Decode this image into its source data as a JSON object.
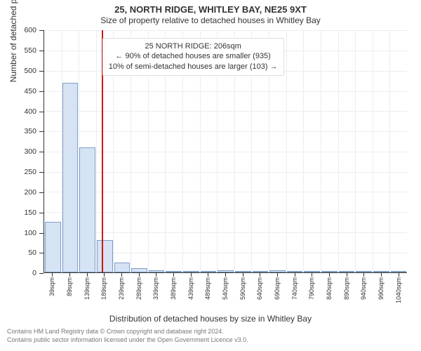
{
  "title_line1": "25, NORTH RIDGE, WHITLEY BAY, NE25 9XT",
  "title_line2": "Size of property relative to detached houses in Whitley Bay",
  "x_axis_label": "Distribution of detached houses by size in Whitley Bay",
  "y_axis_label": "Number of detached properties",
  "credit_line1": "Contains HM Land Registry data © Crown copyright and database right 2024.",
  "credit_line2": "Contains public sector information licensed under the Open Government Licence v3.0.",
  "annotation": {
    "line1": "25 NORTH RIDGE: 206sqm",
    "line2": "← 90% of detached houses are smaller (935)",
    "line3": "10% of semi-detached houses are larger (103) →"
  },
  "chart": {
    "type": "bar",
    "y_max": 600,
    "y_tick_step": 50,
    "reference_x_value": 206,
    "bar_fill": "#d5e3f4",
    "bar_stroke": "#7f9ec9",
    "grid_color": "#e9edf3",
    "reference_color": "#d11414",
    "background": "#ffffff",
    "tick_fontsize": 10,
    "categories": [
      "39sqm",
      "89sqm",
      "139sqm",
      "189sqm",
      "239sqm",
      "289sqm",
      "339sqm",
      "389sqm",
      "439sqm",
      "489sqm",
      "540sqm",
      "590sqm",
      "640sqm",
      "690sqm",
      "740sqm",
      "790sqm",
      "840sqm",
      "890sqm",
      "940sqm",
      "990sqm",
      "1040sqm"
    ],
    "values": [
      126,
      470,
      310,
      80,
      25,
      11,
      6,
      4,
      3,
      2,
      6,
      3,
      2,
      5,
      1,
      2,
      1,
      2,
      2,
      1,
      2
    ],
    "bin_starts": [
      39,
      89,
      139,
      189,
      239,
      289,
      339,
      389,
      439,
      489,
      540,
      590,
      640,
      690,
      740,
      790,
      840,
      890,
      940,
      990,
      1040
    ]
  }
}
